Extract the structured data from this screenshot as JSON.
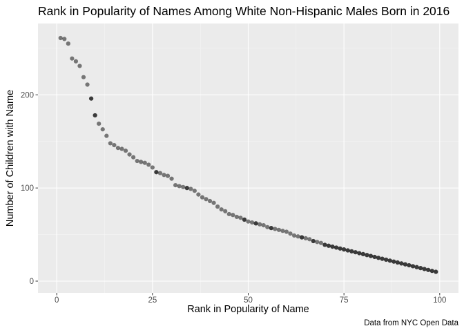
{
  "chart_data": {
    "type": "scatter",
    "title": "Rank in Popularity of Names Among White Non-Hispanic Males Born in 2016",
    "xlabel": "Rank in Popularity of Name",
    "ylabel": "Number of Children with Name",
    "caption": "Data from NYC Open Data",
    "xlim": [
      -4.9,
      104.9
    ],
    "ylim": [
      -12.6,
      276.6
    ],
    "x_ticks": [
      0,
      25,
      50,
      75,
      100
    ],
    "x_tick_labels": [
      "0",
      "25",
      "50",
      "75",
      "100"
    ],
    "y_ticks": [
      0,
      100,
      200
    ],
    "y_tick_labels": [
      "0",
      "100",
      "200"
    ],
    "grid": true,
    "legend": "none",
    "colors": {
      "panel_background": "#ebebeb",
      "grid_major": "#ffffff",
      "grid_minor": "#f5f5f5",
      "point": "#000000",
      "axis_text": "#4d4d4d"
    },
    "point_alpha": 0.5,
    "x": [
      1,
      2,
      3,
      4,
      5,
      6,
      7,
      8,
      9,
      10,
      11,
      12,
      13,
      14,
      15,
      16,
      17,
      18,
      19,
      20,
      21,
      22,
      23,
      24,
      25,
      26,
      27,
      28,
      29,
      30,
      31,
      32,
      33,
      34,
      35,
      36,
      37,
      38,
      39,
      40,
      41,
      42,
      43,
      44,
      45,
      46,
      47,
      48,
      49,
      50,
      51,
      52,
      53,
      54,
      55,
      56,
      57,
      58,
      59,
      60,
      61,
      62,
      63,
      64,
      65,
      66,
      67,
      68,
      69,
      70,
      71,
      72,
      73,
      74,
      75,
      76,
      77,
      78,
      79,
      80,
      81,
      82,
      83,
      84,
      85,
      86,
      87,
      88,
      89,
      90,
      91,
      92,
      93,
      94,
      95,
      96,
      97,
      98,
      99
    ],
    "y": [
      261,
      260,
      255,
      239,
      236,
      231,
      219,
      211,
      196,
      178,
      169,
      163,
      156,
      148,
      146,
      143,
      142,
      140,
      136,
      133,
      129,
      128,
      127,
      125,
      122,
      117,
      116,
      114,
      113,
      110,
      103,
      102,
      101,
      100,
      99,
      97,
      93,
      90,
      88,
      86,
      84,
      80,
      77,
      75,
      72,
      71,
      69,
      68,
      66,
      64,
      63,
      62,
      61,
      60,
      58,
      57,
      56,
      55,
      54,
      53,
      51,
      49,
      48,
      47,
      46,
      45,
      43,
      42,
      41,
      39,
      38,
      37,
      36,
      35,
      34,
      33,
      32,
      31,
      30,
      29,
      28,
      27,
      26,
      25,
      24,
      23,
      22,
      21,
      20,
      19,
      18,
      17,
      16,
      15,
      14,
      13,
      12,
      11,
      10
    ],
    "overplot_counts": [
      1,
      1,
      1,
      1,
      1,
      1,
      1,
      1,
      2,
      2,
      1,
      1,
      1,
      1,
      1,
      1,
      1,
      1,
      1,
      1,
      1,
      1,
      1,
      1,
      1,
      2,
      1,
      1,
      1,
      1,
      1,
      1,
      1,
      2,
      1,
      1,
      1,
      1,
      1,
      1,
      1,
      1,
      1,
      1,
      1,
      1,
      1,
      1,
      2,
      1,
      1,
      2,
      1,
      1,
      1,
      2,
      1,
      1,
      1,
      1,
      1,
      1,
      1,
      2,
      1,
      1,
      2,
      1,
      1,
      2,
      2,
      2,
      2,
      2,
      2,
      2,
      2,
      2,
      2,
      2,
      2,
      2,
      2,
      2,
      2,
      2,
      2,
      2,
      2,
      2,
      2,
      2,
      2,
      2,
      2,
      2,
      2,
      2,
      2
    ]
  }
}
